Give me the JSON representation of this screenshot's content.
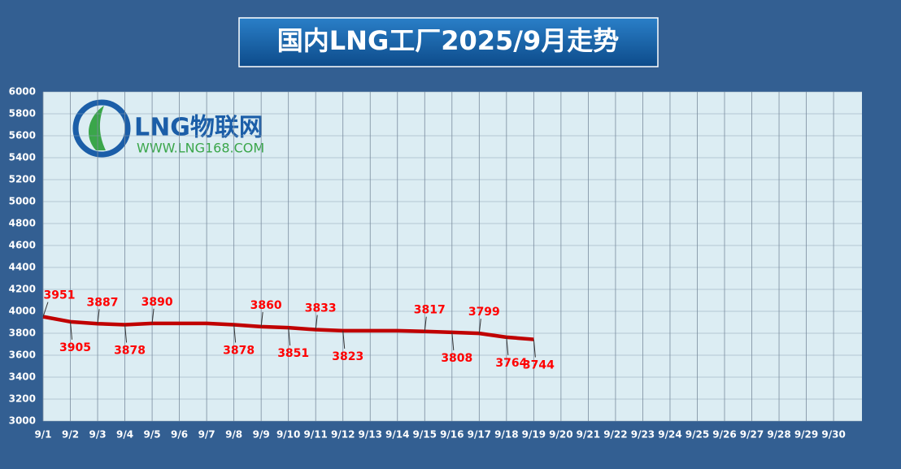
{
  "chart_data": {
    "type": "line",
    "title": "国内LNG工厂2025/9月走势",
    "watermark": {
      "brand": "LNG物联网",
      "url": "WWW.LNG168.COM"
    },
    "categories": [
      "9/1",
      "9/2",
      "9/3",
      "9/4",
      "9/5",
      "9/6",
      "9/7",
      "9/8",
      "9/9",
      "9/10",
      "9/11",
      "9/12",
      "9/13",
      "9/14",
      "9/15",
      "9/16",
      "9/17",
      "9/18",
      "9/19",
      "9/20",
      "9/21",
      "9/22",
      "9/23",
      "9/24",
      "9/25",
      "9/26",
      "9/27",
      "9/28",
      "9/29",
      "9/30"
    ],
    "series": [
      {
        "color": "#c00000",
        "values": [
          3951,
          3905,
          3887,
          3878,
          3890,
          3890,
          3890,
          3878,
          3860,
          3851,
          3833,
          3823,
          3823,
          3823,
          3817,
          3808,
          3799,
          3764,
          3744,
          null,
          null,
          null,
          null,
          null,
          null,
          null,
          null,
          null,
          null,
          null
        ],
        "value_labels": [
          "3951",
          "3905",
          "3887",
          "3878",
          "3890",
          null,
          null,
          "3878",
          "3860",
          "3851",
          "3833",
          "3823",
          null,
          null,
          "3817",
          "3808",
          "3799",
          "3764",
          "3744",
          null,
          null,
          null,
          null,
          null,
          null,
          null,
          null,
          null,
          null,
          null
        ]
      }
    ],
    "ylim": [
      3000,
      6000
    ],
    "yticks": [
      3000,
      3200,
      3400,
      3600,
      3800,
      4000,
      4200,
      4400,
      4600,
      4800,
      5000,
      5200,
      5400,
      5600,
      5800,
      6000
    ],
    "grid": true
  }
}
